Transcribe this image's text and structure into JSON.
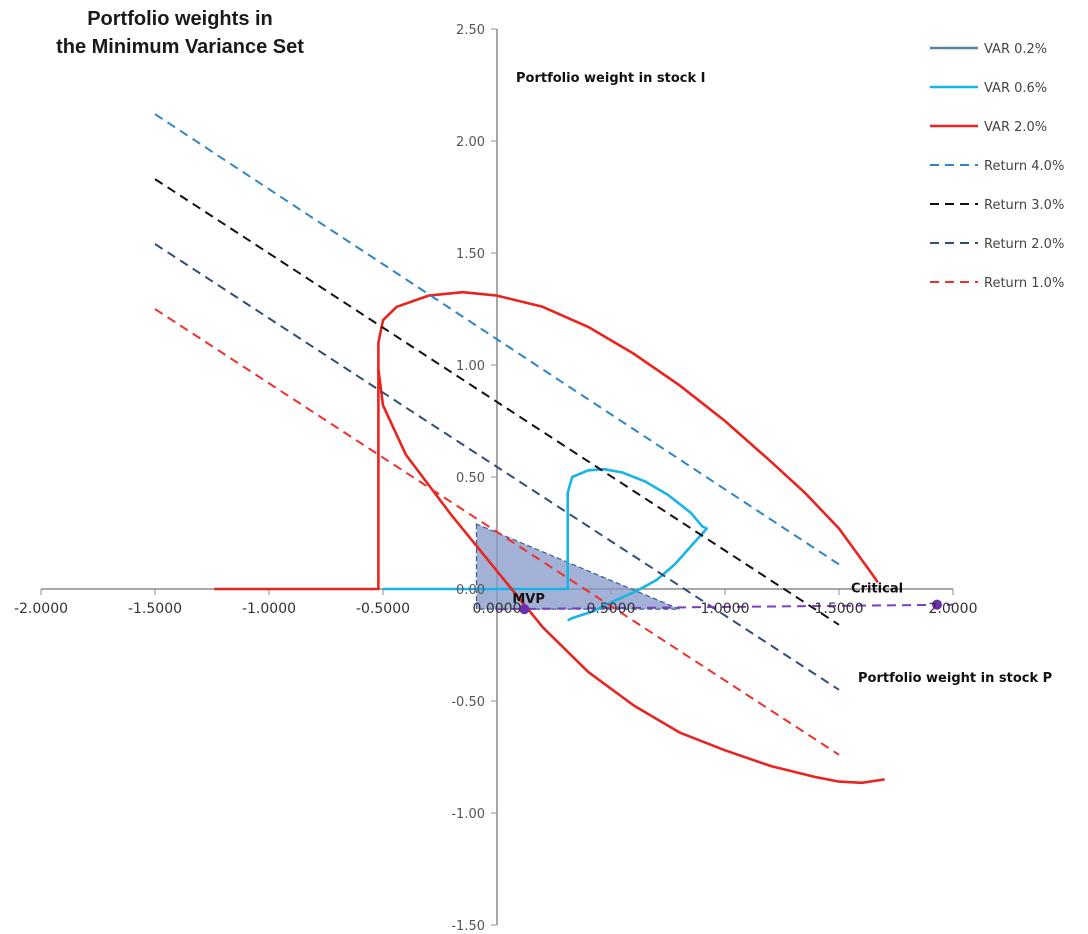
{
  "chart_data": {
    "type": "line",
    "title_lines": [
      "Portfolio weights in",
      "the Minimum Variance Set"
    ],
    "xlabel": "Portfolio weight in stock P",
    "ylabel": "Portfolio weight in stock I",
    "xlim": [
      -2.0,
      2.0
    ],
    "ylim": [
      -1.5,
      2.5
    ],
    "x_ticks": [
      -2.0,
      -1.5,
      -1.0,
      -0.5,
      0.0,
      0.5,
      1.0,
      1.5,
      2.0
    ],
    "x_tick_labels": [
      "-2.0000",
      "-1.5000",
      "-1.0000",
      "-0.5000",
      "0.0000",
      "0.5000",
      "1.0000",
      "1.5000",
      "2.0000"
    ],
    "y_ticks": [
      2.5,
      2.0,
      1.5,
      1.0,
      0.5,
      0.0,
      -0.5,
      -1.0,
      -1.5
    ],
    "y_tick_labels": [
      "2.50",
      "2.00",
      "1.50",
      "1.00",
      "0.50",
      "0.00",
      "-0.50",
      "-1.00",
      "-1.50"
    ],
    "grid": false,
    "legend_position": "top-right",
    "series": [
      {
        "name": "VAR 0.2%",
        "color": "#5b7fb9",
        "dash": "solid",
        "points": []
      },
      {
        "name": "VAR 0.6%",
        "color": "#18b4e8",
        "dash": "solid",
        "points": [
          [
            -0.5,
            0.0
          ],
          [
            0.3,
            0.0
          ],
          [
            0.31,
            0.0
          ],
          [
            0.31,
            0.43
          ],
          [
            0.33,
            0.5
          ],
          [
            0.4,
            0.53
          ],
          [
            0.47,
            0.535
          ],
          [
            0.55,
            0.52
          ],
          [
            0.65,
            0.48
          ],
          [
            0.75,
            0.42
          ],
          [
            0.85,
            0.34
          ],
          [
            0.9,
            0.28
          ],
          [
            0.92,
            0.27
          ],
          [
            0.85,
            0.19
          ],
          [
            0.78,
            0.11
          ],
          [
            0.7,
            0.04
          ],
          [
            0.61,
            -0.01
          ],
          [
            0.5,
            -0.06
          ],
          [
            0.42,
            -0.1
          ],
          [
            0.36,
            -0.12
          ],
          [
            0.33,
            -0.13
          ],
          [
            0.31,
            -0.14
          ]
        ]
      },
      {
        "name": "VAR 2.0%",
        "color": "#e8241f",
        "dash": "solid",
        "points": [
          [
            -1.24,
            0.0
          ],
          [
            -0.53,
            0.0
          ],
          [
            -0.52,
            0.0
          ],
          [
            -0.52,
            1.1
          ],
          [
            -0.5,
            1.2
          ],
          [
            -0.44,
            1.26
          ],
          [
            -0.3,
            1.31
          ],
          [
            -0.15,
            1.325
          ],
          [
            0.0,
            1.31
          ],
          [
            0.2,
            1.26
          ],
          [
            0.4,
            1.17
          ],
          [
            0.6,
            1.05
          ],
          [
            0.8,
            0.91
          ],
          [
            1.0,
            0.75
          ],
          [
            1.2,
            0.57
          ],
          [
            1.35,
            0.43
          ],
          [
            1.5,
            0.27
          ],
          [
            1.6,
            0.13
          ],
          [
            1.65,
            0.06
          ],
          [
            1.67,
            0.03
          ]
        ]
      },
      {
        "name": "VAR 2.0%",
        "color": "#e8241f",
        "dash": "solid",
        "legend": false,
        "points": [
          [
            -0.52,
            0.98
          ],
          [
            -0.5,
            0.82
          ],
          [
            -0.4,
            0.6
          ],
          [
            -0.2,
            0.33
          ],
          [
            0.0,
            0.08
          ],
          [
            0.2,
            -0.17
          ],
          [
            0.4,
            -0.37
          ],
          [
            0.6,
            -0.52
          ],
          [
            0.8,
            -0.64
          ],
          [
            1.0,
            -0.72
          ],
          [
            1.2,
            -0.79
          ],
          [
            1.4,
            -0.84
          ],
          [
            1.5,
            -0.86
          ],
          [
            1.6,
            -0.865
          ],
          [
            1.7,
            -0.85
          ]
        ]
      },
      {
        "name": "Return 4.0%",
        "color": "#2e86c8",
        "dash": "dashed",
        "points": [
          [
            -1.5,
            2.12
          ],
          [
            1.5,
            0.11
          ]
        ]
      },
      {
        "name": "Return 3.0%",
        "color": "#111111",
        "dash": "dashed",
        "points": [
          [
            -1.5,
            1.83
          ],
          [
            1.5,
            -0.16
          ]
        ]
      },
      {
        "name": "Return 2.0%",
        "color": "#2f4e7a",
        "dash": "dashed",
        "points": [
          [
            -1.5,
            1.54
          ],
          [
            1.5,
            -0.45
          ]
        ]
      },
      {
        "name": "Return 1.0%",
        "color": "#f0302a",
        "dash": "dashed",
        "points": [
          [
            -1.5,
            1.25
          ],
          [
            1.5,
            -0.74
          ]
        ]
      },
      {
        "name": "Frontier",
        "color": "#7a3fc0",
        "dash": "dashed",
        "legend": false,
        "points": [
          [
            0.0,
            -0.09
          ],
          [
            2.0,
            -0.07
          ]
        ]
      }
    ],
    "shaded_region": {
      "color": "#8497c9",
      "opacity": 0.75,
      "edge": "#3b5d96",
      "points": [
        [
          -0.09,
          0.29
        ],
        [
          -0.09,
          -0.09
        ],
        [
          0.8,
          -0.09
        ]
      ]
    },
    "markers": [
      {
        "label": "MVP",
        "x": 0.12,
        "y": -0.09,
        "color": "#6a2fb0"
      },
      {
        "label": "Critical",
        "x": 1.93,
        "y": -0.07,
        "color": "#6a2fb0"
      }
    ]
  }
}
